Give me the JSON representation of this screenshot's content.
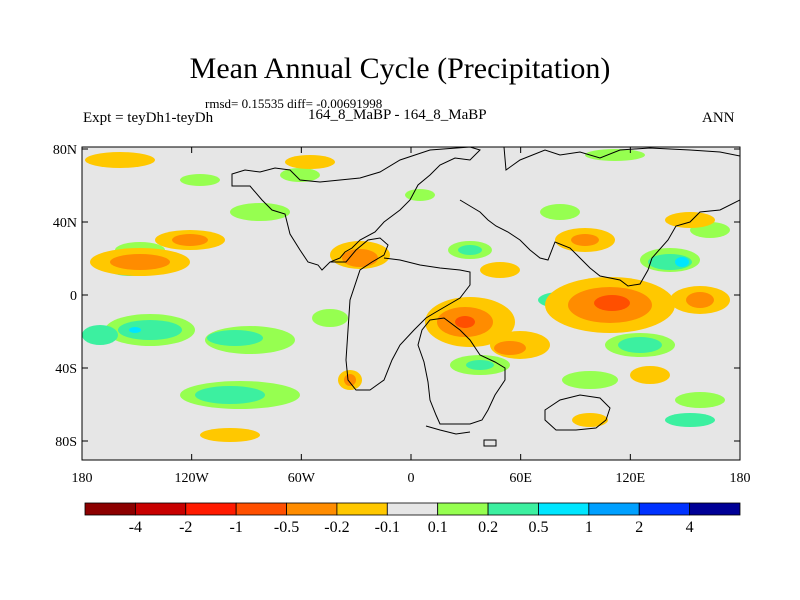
{
  "title": "Mean Annual Cycle (Precipitation)",
  "stats": "rmsd= 0.15535 diff= -0.00691998",
  "experiment": "Expt = teyDh1-teyDh",
  "period": "164_8_MaBP - 164_8_MaBP",
  "season": "ANN",
  "lat_labels": [
    "80N",
    "40N",
    "0",
    "40S",
    "80S"
  ],
  "lon_labels": [
    "180",
    "120W",
    "60W",
    "0",
    "60E",
    "120E",
    "180"
  ],
  "colorbar": {
    "labels": [
      "-4",
      "-2",
      "-1",
      "-0.5",
      "-0.2",
      "-0.1",
      "0.1",
      "0.2",
      "0.5",
      "1",
      "2",
      "4"
    ],
    "colors": [
      "#8c0000",
      "#c80000",
      "#ff1a00",
      "#ff4f00",
      "#ff8c00",
      "#ffc800",
      "#e6e6e6",
      "#96ff50",
      "#3cf0a0",
      "#00e6ff",
      "#00a0ff",
      "#0032ff",
      "#000096"
    ]
  }
}
